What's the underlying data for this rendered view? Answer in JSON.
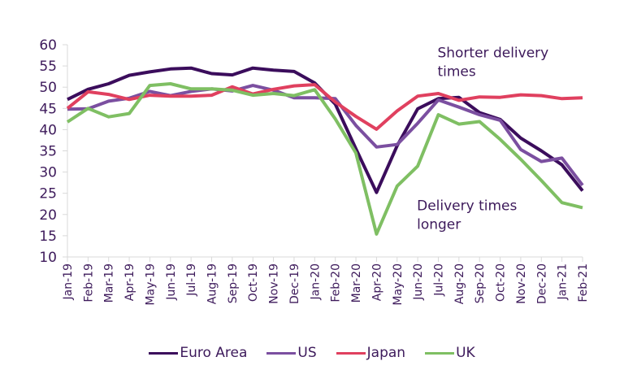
{
  "chart_data": {
    "type": "line",
    "title": "",
    "xlabel": "",
    "ylabel": "",
    "ylim": [
      10,
      60
    ],
    "yticks": [
      "10",
      "15",
      "20",
      "25",
      "30",
      "35",
      "40",
      "45",
      "50",
      "55",
      "60"
    ],
    "grid": false,
    "legend_position": "bottom",
    "x": [
      "Jan-19",
      "Feb-19",
      "Mar-19",
      "Apr-19",
      "May-19",
      "Jun-19",
      "Jul-19",
      "Aug-19",
      "Sep-19",
      "Oct-19",
      "Nov-19",
      "Dec-19",
      "Jan-20",
      "Feb-20",
      "Mar-20",
      "Apr-20",
      "May-20",
      "Jun-20",
      "Jul-20",
      "Aug-20",
      "Sep-20",
      "Oct-20",
      "Nov-20",
      "Dec-20",
      "Jan-21",
      "Feb-21"
    ],
    "series": [
      {
        "name": "Euro Area",
        "color": "#3b0d5c",
        "values": [
          47.1,
          49.5,
          50.8,
          52.8,
          53.6,
          54.3,
          54.5,
          53.2,
          52.9,
          54.5,
          54.0,
          53.7,
          51.0,
          46.0,
          35.5,
          25.2,
          36.2,
          44.9,
          47.3,
          47.6,
          44.0,
          42.4,
          38.0,
          35.0,
          31.7,
          25.6
        ]
      },
      {
        "name": "US",
        "color": "#7b4fa0",
        "values": [
          44.8,
          44.9,
          46.7,
          47.4,
          49.0,
          48.0,
          49.0,
          49.6,
          49.1,
          50.4,
          49.3,
          47.5,
          47.5,
          47.3,
          41.0,
          35.9,
          36.5,
          41.5,
          47.0,
          45.3,
          43.5,
          42.2,
          35.3,
          32.5,
          33.3,
          26.9
        ]
      },
      {
        "name": "Japan",
        "color": "#e0405f",
        "values": [
          45.0,
          48.9,
          48.3,
          47.1,
          48.1,
          47.9,
          47.9,
          48.1,
          50.1,
          48.4,
          49.5,
          50.3,
          50.6,
          46.5,
          43.1,
          40.1,
          44.4,
          47.9,
          48.5,
          46.9,
          47.7,
          47.6,
          48.2,
          48.0,
          47.3,
          47.5
        ]
      },
      {
        "name": "UK",
        "color": "#7fbf63",
        "values": [
          41.8,
          45.0,
          43.0,
          43.8,
          50.4,
          50.8,
          49.6,
          49.6,
          49.3,
          48.1,
          48.5,
          48.0,
          49.4,
          42.5,
          34.5,
          15.4,
          26.7,
          31.4,
          43.5,
          41.3,
          41.9,
          37.7,
          33.0,
          28.0,
          22.8,
          21.6
        ]
      }
    ],
    "annotations": [
      {
        "lines": [
          "Shorter delivery",
          "times"
        ],
        "anchor": {
          "x": "Jul-20",
          "y": 57
        }
      },
      {
        "lines": [
          "Delivery times",
          "longer"
        ],
        "anchor": {
          "x": "Jun-20",
          "y": 21
        }
      }
    ]
  }
}
